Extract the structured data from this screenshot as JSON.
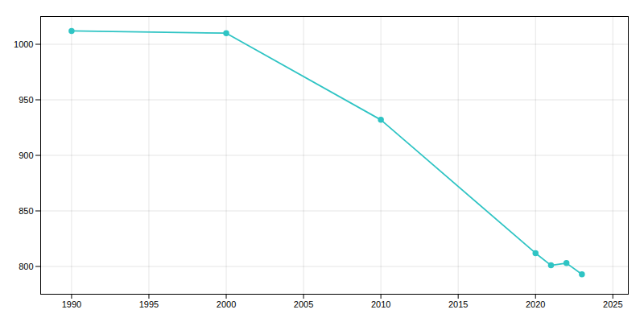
{
  "chart_data": {
    "type": "line",
    "x": [
      1990,
      2000,
      2010,
      2020,
      2021,
      2022,
      2023
    ],
    "values": [
      1012,
      1010,
      932,
      812,
      801,
      803,
      793
    ],
    "color": "#2fc4c4",
    "marker": "circle",
    "xlim": [
      1988,
      2026
    ],
    "ylim": [
      775,
      1025
    ],
    "xticks": [
      1990,
      1995,
      2000,
      2005,
      2010,
      2015,
      2020,
      2025
    ],
    "yticks": [
      800,
      850,
      900,
      950,
      1000
    ],
    "grid": true
  }
}
